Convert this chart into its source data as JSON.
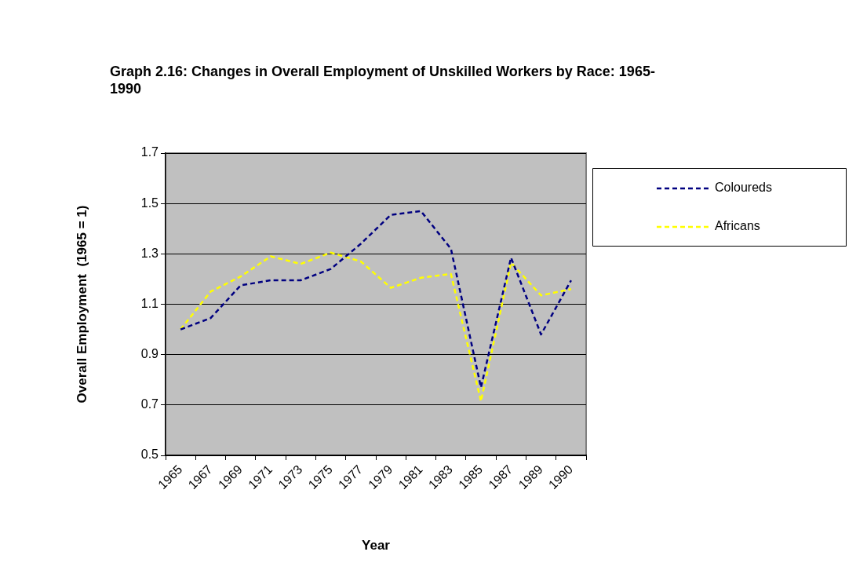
{
  "chart_data": {
    "type": "line",
    "title": "Graph 2.16: Changes in Overall Employment of Unskilled  Workers by Race: 1965-1990",
    "xlabel": "Year",
    "ylabel": "Overall Employment  (1965 = 1)",
    "categories": [
      "1965",
      "1967",
      "1969",
      "1971",
      "1973",
      "1975",
      "1977",
      "1979",
      "1981",
      "1983",
      "1985",
      "1987",
      "1989",
      "1990"
    ],
    "series": [
      {
        "name": "Coloureds",
        "color": "#000080",
        "values": [
          1.0,
          1.045,
          1.175,
          1.195,
          1.195,
          1.24,
          1.34,
          1.455,
          1.47,
          1.32,
          0.77,
          1.285,
          0.98,
          1.195
        ]
      },
      {
        "name": "Africans",
        "color": "#ffff00",
        "values": [
          1.0,
          1.15,
          1.21,
          1.29,
          1.26,
          1.305,
          1.27,
          1.165,
          1.205,
          1.22,
          0.715,
          1.265,
          1.135,
          1.16
        ]
      }
    ],
    "ylim": [
      0.5,
      1.7
    ],
    "yticks": [
      0.5,
      0.7,
      0.9,
      1.1,
      1.3,
      1.5,
      1.7
    ],
    "grid": "y",
    "legend": "right",
    "marker": "none",
    "line_style": "dashed"
  }
}
